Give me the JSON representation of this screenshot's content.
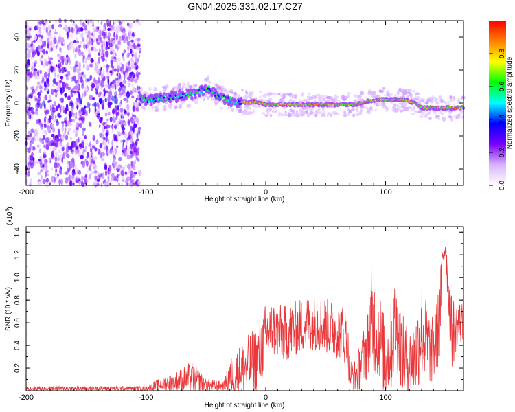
{
  "title": "GN04.2025.331.02.17.C27",
  "chart_data": [
    {
      "type": "heatmap",
      "xlabel": "Height of straight line (km)",
      "ylabel": "Frequency (Hz)",
      "xlim": [
        -200,
        165
      ],
      "ylim": [
        -50,
        50
      ],
      "xticks": [
        -200,
        -100,
        0,
        100
      ],
      "yticks": [
        -40,
        -20,
        0,
        20,
        40
      ],
      "colorbar": {
        "label": "Normalized spectral amplitude",
        "range": [
          0,
          1
        ],
        "ticks": [
          "0.0",
          "0.2",
          "0.4",
          "0.6",
          "0.8"
        ],
        "colormap": [
          "#ffffff",
          "#d9b3ff",
          "#7a00ff",
          "#0000ff",
          "#00ffff",
          "#00ff00",
          "#ffff00",
          "#ff8000",
          "#ff0000"
        ]
      },
      "ridge": {
        "x": [
          -105,
          -95,
          -85,
          -75,
          -65,
          -55,
          -48,
          -44,
          -40,
          -35,
          -30,
          -25,
          -20,
          -15,
          -10,
          0,
          20,
          40,
          60,
          75,
          85,
          95,
          105,
          115,
          125,
          130,
          140,
          150,
          165
        ],
        "freq": [
          2,
          2,
          3,
          4,
          5,
          7,
          9,
          7,
          4,
          3,
          2,
          0,
          1,
          0,
          1,
          -1,
          -1,
          -1,
          -1,
          -1,
          1,
          2,
          2,
          2,
          0,
          -3,
          -3,
          -3,
          -3
        ]
      }
    },
    {
      "type": "line",
      "xlabel": "Height of straight line (km)",
      "ylabel": "SNR (10 * v/v)",
      "multiplier": "(x10",
      "exponent": "4",
      "exponent_close": ")",
      "xlim": [
        -200,
        165
      ],
      "ylim": [
        0,
        1.45
      ],
      "xticks": [
        -200,
        -100,
        0,
        100
      ],
      "yticks": [
        "0.2",
        "0.4",
        "0.6",
        "0.8",
        "1.0",
        "1.2",
        "1.4"
      ],
      "line_color": "#e8383b",
      "envelope": {
        "x": [
          -200,
          -140,
          -100,
          -90,
          -75,
          -62,
          -50,
          -35,
          -30,
          -22,
          -12,
          -5,
          0,
          5,
          15,
          25,
          35,
          45,
          55,
          65,
          68,
          70,
          75,
          80,
          85,
          88,
          95,
          100,
          105,
          108,
          115,
          120,
          125,
          130,
          135,
          140,
          145,
          148,
          150,
          155,
          160,
          165
        ],
        "base": [
          0.02,
          0.02,
          0.02,
          0.05,
          0.08,
          0.12,
          0.05,
          0.04,
          0.12,
          0.18,
          0.25,
          0.3,
          0.5,
          0.55,
          0.5,
          0.55,
          0.6,
          0.6,
          0.55,
          0.5,
          0.45,
          0.15,
          0.12,
          0.25,
          0.4,
          0.6,
          0.5,
          0.25,
          0.45,
          0.6,
          0.3,
          0.25,
          0.3,
          0.55,
          0.4,
          0.35,
          0.6,
          1.2,
          1.3,
          0.5,
          0.6,
          0.6
        ],
        "amp": [
          0.02,
          0.02,
          0.02,
          0.05,
          0.09,
          0.14,
          0.06,
          0.04,
          0.16,
          0.22,
          0.28,
          0.3,
          0.28,
          0.25,
          0.25,
          0.25,
          0.24,
          0.25,
          0.25,
          0.25,
          0.25,
          0.15,
          0.15,
          0.25,
          0.3,
          0.5,
          0.4,
          0.35,
          0.45,
          0.4,
          0.35,
          0.3,
          0.35,
          0.45,
          0.35,
          0.3,
          0.35,
          0.2,
          0.15,
          0.35,
          0.2,
          0.2
        ]
      }
    }
  ]
}
